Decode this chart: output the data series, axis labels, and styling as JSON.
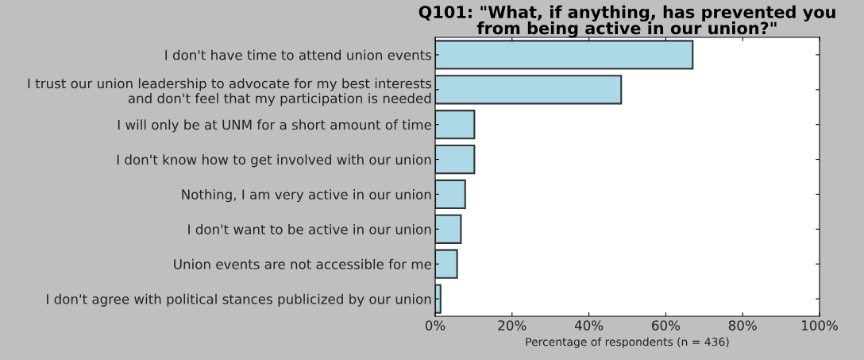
{
  "chart_data": {
    "type": "bar",
    "orientation": "horizontal",
    "title": "Q101: \"What, if anything, has prevented you\nfrom being active in our union?\"",
    "xlabel": "Percentage of respondents (n = 436)",
    "categories": [
      "I don't have time to attend union events",
      "I trust our union leadership to advocate for my best interests\nand don't feel that my participation is needed",
      "I will only be at UNM for a short amount of time",
      "I don't know how to get involved with our union",
      "Nothing, I am very active in our union",
      "I don't want to be active in our union",
      "Union events are not accessible for me",
      "I don't agree with political stances publicized by our union"
    ],
    "values": [
      67.0,
      48.4,
      10.2,
      10.2,
      7.8,
      6.7,
      5.7,
      1.4
    ],
    "color": "#add8e6",
    "xlim": [
      0,
      100
    ],
    "xticks": [
      {
        "value": 0,
        "label": "0%"
      },
      {
        "value": 20,
        "label": "20%"
      },
      {
        "value": 40,
        "label": "40%"
      },
      {
        "value": 60,
        "label": "60%"
      },
      {
        "value": 80,
        "label": "80%"
      },
      {
        "value": 100,
        "label": "100%"
      }
    ],
    "grid": false,
    "legend": false
  }
}
